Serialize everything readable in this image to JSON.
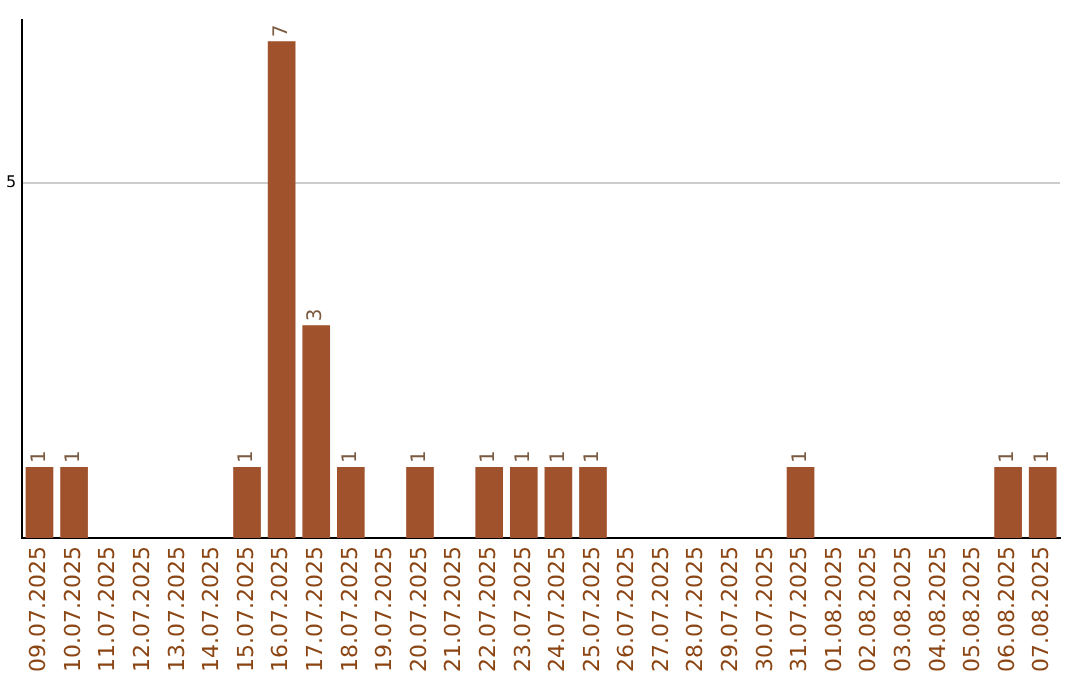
{
  "chart_data": {
    "type": "bar",
    "categories": [
      "09.07.2025",
      "10.07.2025",
      "11.07.2025",
      "12.07.2025",
      "13.07.2025",
      "14.07.2025",
      "15.07.2025",
      "16.07.2025",
      "17.07.2025",
      "18.07.2025",
      "19.07.2025",
      "20.07.2025",
      "21.07.2025",
      "22.07.2025",
      "23.07.2025",
      "24.07.2025",
      "25.07.2025",
      "26.07.2025",
      "27.07.2025",
      "28.07.2025",
      "29.07.2025",
      "30.07.2025",
      "31.07.2025",
      "01.08.2025",
      "02.08.2025",
      "03.08.2025",
      "04.08.2025",
      "05.08.2025",
      "06.08.2025",
      "07.08.2025"
    ],
    "values": [
      1,
      1,
      0,
      0,
      0,
      0,
      1,
      7,
      3,
      1,
      0,
      1,
      0,
      1,
      1,
      1,
      1,
      0,
      0,
      0,
      0,
      0,
      1,
      0,
      0,
      0,
      0,
      0,
      1,
      1
    ],
    "value_labels": [
      "1",
      "1",
      null,
      null,
      null,
      null,
      "1",
      "7",
      "3",
      "1",
      null,
      "1",
      null,
      "1",
      "1",
      "1",
      "1",
      null,
      null,
      null,
      null,
      null,
      "1",
      null,
      null,
      null,
      null,
      null,
      "1",
      "1"
    ],
    "color": "#a0522d",
    "ylim": [
      0,
      7.3
    ],
    "yticks": [
      5
    ],
    "grid": "y"
  }
}
